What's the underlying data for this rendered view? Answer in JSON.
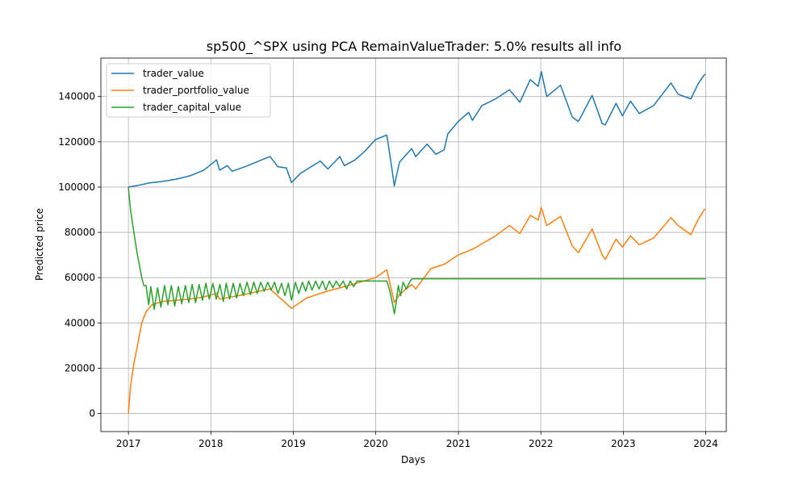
{
  "chart_data": {
    "type": "line",
    "title": "sp500_^SPX using PCA RemainValueTrader: 5.0% results all info",
    "xlabel": "Days",
    "ylabel": "Predicted price",
    "xlim": [
      "2016-09-01",
      "2024-04-01"
    ],
    "ylim": [
      -8000,
      157000
    ],
    "x_ticks": [
      "2017-01-01",
      "2018-01-01",
      "2019-01-01",
      "2020-01-01",
      "2021-01-01",
      "2022-01-01",
      "2023-01-01",
      "2024-01-01"
    ],
    "x_tick_labels": [
      "2017",
      "2018",
      "2019",
      "2020",
      "2021",
      "2022",
      "2023",
      "2024"
    ],
    "y_ticks": [
      0,
      20000,
      40000,
      60000,
      80000,
      100000,
      120000,
      140000
    ],
    "y_tick_labels": [
      "0",
      "20000",
      "40000",
      "60000",
      "80000",
      "100000",
      "120000",
      "140000"
    ],
    "grid": true,
    "legend_position": "upper-left",
    "series": [
      {
        "name": "trader_value",
        "color": "#1f77b4",
        "points": [
          [
            "2017-01-01",
            100000
          ],
          [
            "2017-02-15",
            100800
          ],
          [
            "2017-04-01",
            101800
          ],
          [
            "2017-06-01",
            102500
          ],
          [
            "2017-08-01",
            103500
          ],
          [
            "2017-10-01",
            105000
          ],
          [
            "2017-12-01",
            107500
          ],
          [
            "2018-01-26",
            112000
          ],
          [
            "2018-02-09",
            107500
          ],
          [
            "2018-03-15",
            109500
          ],
          [
            "2018-04-05",
            107000
          ],
          [
            "2018-06-01",
            109000
          ],
          [
            "2018-08-01",
            111500
          ],
          [
            "2018-09-20",
            113500
          ],
          [
            "2018-10-25",
            109000
          ],
          [
            "2018-12-01",
            108500
          ],
          [
            "2018-12-24",
            102000
          ],
          [
            "2019-02-01",
            106000
          ],
          [
            "2019-04-30",
            111500
          ],
          [
            "2019-06-03",
            108000
          ],
          [
            "2019-07-26",
            113500
          ],
          [
            "2019-08-15",
            109500
          ],
          [
            "2019-10-01",
            112000
          ],
          [
            "2019-11-15",
            116000
          ],
          [
            "2019-12-31",
            121000
          ],
          [
            "2020-02-19",
            123000
          ],
          [
            "2020-03-10",
            110000
          ],
          [
            "2020-03-23",
            100500
          ],
          [
            "2020-04-15",
            111000
          ],
          [
            "2020-06-08",
            117000
          ],
          [
            "2020-06-26",
            113500
          ],
          [
            "2020-08-15",
            119000
          ],
          [
            "2020-09-23",
            114500
          ],
          [
            "2020-10-30",
            116500
          ],
          [
            "2020-11-15",
            123500
          ],
          [
            "2020-12-31",
            129000
          ],
          [
            "2021-02-15",
            133000
          ],
          [
            "2021-03-04",
            129500
          ],
          [
            "2021-04-15",
            136000
          ],
          [
            "2021-06-15",
            139000
          ],
          [
            "2021-08-15",
            143000
          ],
          [
            "2021-09-30",
            137500
          ],
          [
            "2021-11-15",
            147500
          ],
          [
            "2021-12-20",
            144500
          ],
          [
            "2022-01-03",
            151000
          ],
          [
            "2022-01-27",
            140000
          ],
          [
            "2022-03-29",
            145000
          ],
          [
            "2022-05-20",
            131000
          ],
          [
            "2022-06-16",
            129000
          ],
          [
            "2022-08-16",
            140500
          ],
          [
            "2022-09-30",
            128000
          ],
          [
            "2022-10-13",
            127500
          ],
          [
            "2022-11-30",
            137000
          ],
          [
            "2022-12-28",
            131500
          ],
          [
            "2023-02-02",
            138000
          ],
          [
            "2023-03-13",
            132500
          ],
          [
            "2023-05-15",
            136000
          ],
          [
            "2023-07-31",
            146000
          ],
          [
            "2023-09-01",
            141000
          ],
          [
            "2023-10-27",
            139000
          ],
          [
            "2023-11-30",
            146000
          ],
          [
            "2023-12-29",
            150000
          ]
        ]
      },
      {
        "name": "trader_portfolio_value",
        "color": "#ff7f0e",
        "points": [
          [
            "2017-01-01",
            0
          ],
          [
            "2017-01-10",
            12000
          ],
          [
            "2017-01-25",
            22000
          ],
          [
            "2017-02-10",
            30000
          ],
          [
            "2017-03-01",
            40000
          ],
          [
            "2017-03-20",
            45000
          ],
          [
            "2017-04-15",
            48000
          ],
          [
            "2017-06-01",
            49500
          ],
          [
            "2017-08-01",
            50000
          ],
          [
            "2017-10-01",
            50500
          ],
          [
            "2017-12-01",
            51500
          ],
          [
            "2018-01-26",
            53000
          ],
          [
            "2018-02-09",
            50500
          ],
          [
            "2018-05-01",
            52000
          ],
          [
            "2018-09-20",
            55000
          ],
          [
            "2018-12-24",
            46500
          ],
          [
            "2019-03-01",
            51000
          ],
          [
            "2019-06-01",
            54000
          ],
          [
            "2019-09-01",
            56500
          ],
          [
            "2019-12-31",
            60000
          ],
          [
            "2020-02-19",
            63500
          ],
          [
            "2020-03-23",
            49000
          ],
          [
            "2020-04-15",
            52500
          ],
          [
            "2020-06-08",
            57000
          ],
          [
            "2020-06-26",
            55000
          ],
          [
            "2020-09-01",
            64000
          ],
          [
            "2020-11-01",
            66000
          ],
          [
            "2020-12-31",
            70000
          ],
          [
            "2021-03-04",
            72500
          ],
          [
            "2021-06-15",
            78500
          ],
          [
            "2021-08-15",
            83000
          ],
          [
            "2021-09-30",
            79500
          ],
          [
            "2021-11-15",
            87500
          ],
          [
            "2021-12-20",
            85500
          ],
          [
            "2022-01-03",
            91000
          ],
          [
            "2022-01-27",
            83000
          ],
          [
            "2022-03-29",
            87000
          ],
          [
            "2022-05-20",
            74000
          ],
          [
            "2022-06-16",
            71000
          ],
          [
            "2022-08-16",
            81500
          ],
          [
            "2022-09-30",
            70000
          ],
          [
            "2022-10-13",
            68000
          ],
          [
            "2022-11-30",
            77000
          ],
          [
            "2022-12-28",
            73500
          ],
          [
            "2023-02-02",
            78500
          ],
          [
            "2023-03-13",
            74500
          ],
          [
            "2023-05-15",
            77500
          ],
          [
            "2023-07-31",
            86500
          ],
          [
            "2023-09-01",
            83000
          ],
          [
            "2023-10-27",
            79000
          ],
          [
            "2023-11-30",
            86000
          ],
          [
            "2023-12-29",
            90500
          ]
        ]
      },
      {
        "name": "trader_capital_value",
        "color": "#2ca02c",
        "points": [
          [
            "2017-01-01",
            100000
          ],
          [
            "2017-01-10",
            90000
          ],
          [
            "2017-01-25",
            80000
          ],
          [
            "2017-02-10",
            70000
          ],
          [
            "2017-03-01",
            60000
          ],
          [
            "2017-03-10",
            56500
          ],
          [
            "2017-03-20",
            56500
          ],
          [
            "2017-04-01",
            48000
          ],
          [
            "2017-04-10",
            56000
          ],
          [
            "2017-04-25",
            46000
          ],
          [
            "2017-05-10",
            55500
          ],
          [
            "2017-05-25",
            47000
          ],
          [
            "2017-06-10",
            56500
          ],
          [
            "2017-06-25",
            48000
          ],
          [
            "2017-07-10",
            56500
          ],
          [
            "2017-07-25",
            47500
          ],
          [
            "2017-08-10",
            56000
          ],
          [
            "2017-08-25",
            48500
          ],
          [
            "2017-09-10",
            56500
          ],
          [
            "2017-09-25",
            49000
          ],
          [
            "2017-10-10",
            57000
          ],
          [
            "2017-10-25",
            49000
          ],
          [
            "2017-11-10",
            57000
          ],
          [
            "2017-11-25",
            50000
          ],
          [
            "2017-12-10",
            57500
          ],
          [
            "2017-12-25",
            50500
          ],
          [
            "2018-01-10",
            57500
          ],
          [
            "2018-01-25",
            50500
          ],
          [
            "2018-02-10",
            57000
          ],
          [
            "2018-02-25",
            49500
          ],
          [
            "2018-03-10",
            57500
          ],
          [
            "2018-03-25",
            50500
          ],
          [
            "2018-04-10",
            57500
          ],
          [
            "2018-04-25",
            51000
          ],
          [
            "2018-05-10",
            57500
          ],
          [
            "2018-05-25",
            52000
          ],
          [
            "2018-06-10",
            58000
          ],
          [
            "2018-06-25",
            52500
          ],
          [
            "2018-07-10",
            58000
          ],
          [
            "2018-07-25",
            53000
          ],
          [
            "2018-08-10",
            58000
          ],
          [
            "2018-08-25",
            54000
          ],
          [
            "2018-09-10",
            58000
          ],
          [
            "2018-09-25",
            54500
          ],
          [
            "2018-10-10",
            58000
          ],
          [
            "2018-10-25",
            53000
          ],
          [
            "2018-11-10",
            57500
          ],
          [
            "2018-11-25",
            52000
          ],
          [
            "2018-12-10",
            57500
          ],
          [
            "2018-12-24",
            50000
          ],
          [
            "2019-01-10",
            58000
          ],
          [
            "2019-01-25",
            53000
          ],
          [
            "2019-02-10",
            58000
          ],
          [
            "2019-02-25",
            54000
          ],
          [
            "2019-03-10",
            58500
          ],
          [
            "2019-03-25",
            54500
          ],
          [
            "2019-04-10",
            58500
          ],
          [
            "2019-04-25",
            55000
          ],
          [
            "2019-05-10",
            58500
          ],
          [
            "2019-05-25",
            54500
          ],
          [
            "2019-06-10",
            58500
          ],
          [
            "2019-06-25",
            55500
          ],
          [
            "2019-07-10",
            58500
          ],
          [
            "2019-07-25",
            56000
          ],
          [
            "2019-08-10",
            58500
          ],
          [
            "2019-08-25",
            55000
          ],
          [
            "2019-09-10",
            58500
          ],
          [
            "2019-09-25",
            56000
          ],
          [
            "2019-10-10",
            58500
          ],
          [
            "2019-11-01",
            58500
          ],
          [
            "2020-01-01",
            58500
          ],
          [
            "2020-02-19",
            58500
          ],
          [
            "2020-03-01",
            55000
          ],
          [
            "2020-03-10",
            51000
          ],
          [
            "2020-03-18",
            47000
          ],
          [
            "2020-03-23",
            44000
          ],
          [
            "2020-03-30",
            48000
          ],
          [
            "2020-04-10",
            56500
          ],
          [
            "2020-04-20",
            52000
          ],
          [
            "2020-05-01",
            58000
          ],
          [
            "2020-05-15",
            55000
          ],
          [
            "2020-06-01",
            58500
          ],
          [
            "2020-06-10",
            59500
          ],
          [
            "2020-07-01",
            59500
          ],
          [
            "2024-01-01",
            59500
          ]
        ]
      }
    ]
  }
}
